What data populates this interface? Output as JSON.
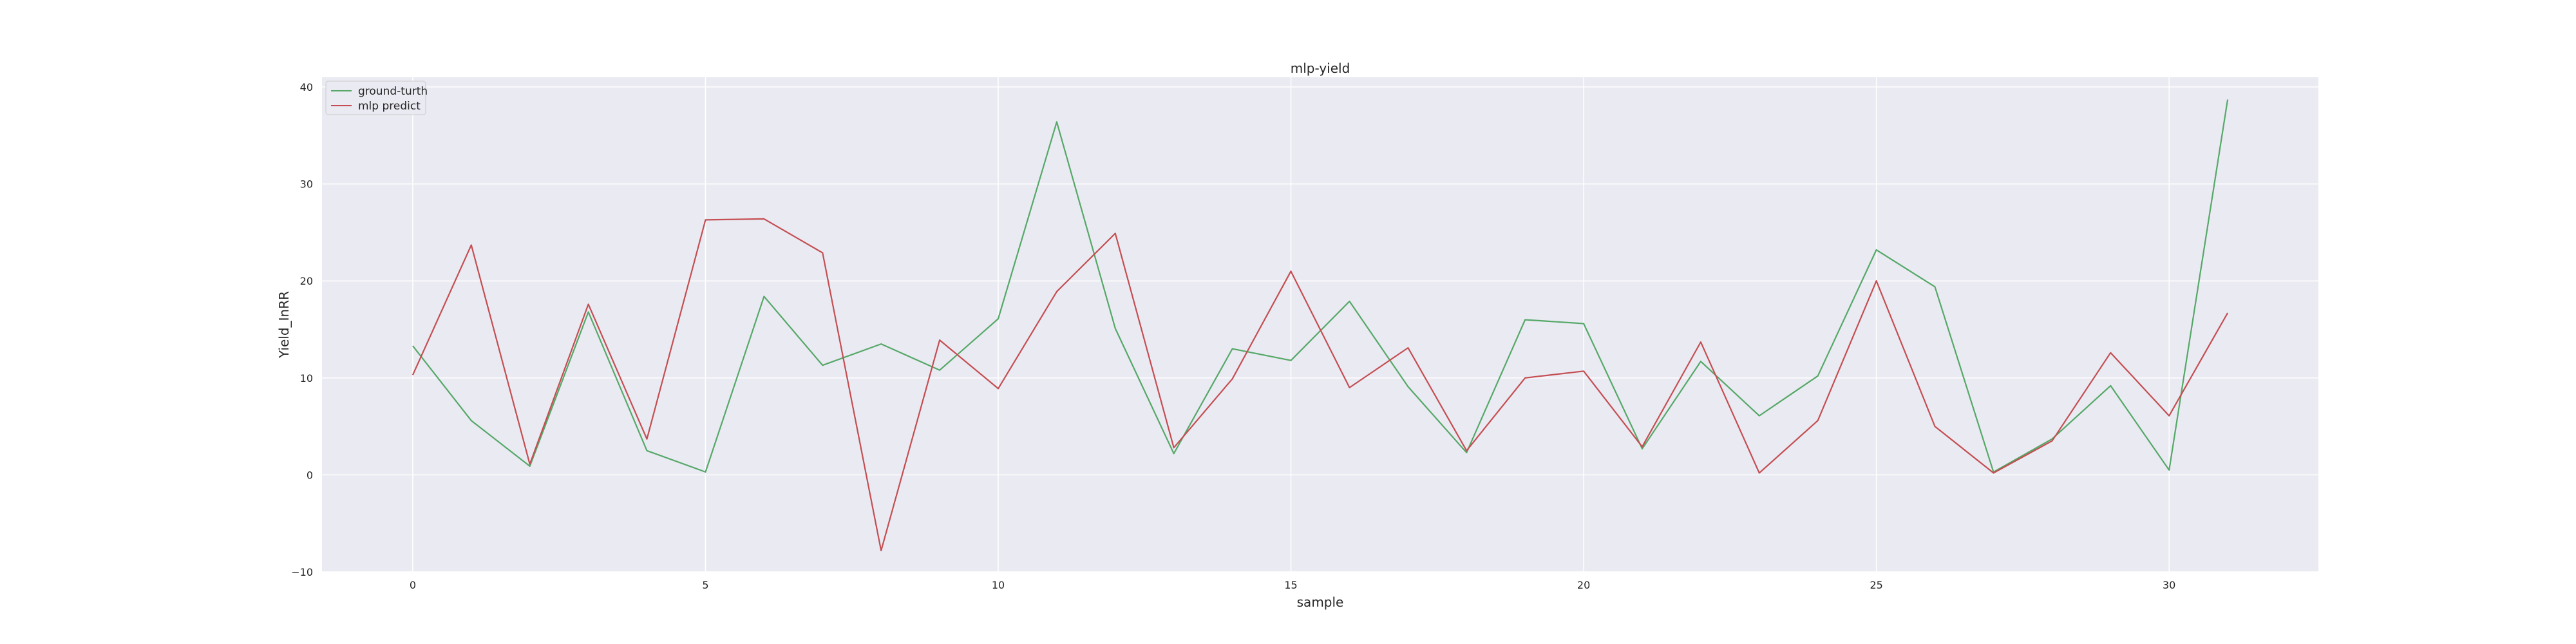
{
  "chart_data": {
    "type": "line",
    "title": "mlp-yield",
    "xlabel": "sample",
    "ylabel": "Yield_InRR",
    "xlim": [
      -1.55,
      32.55
    ],
    "ylim": [
      -10,
      41
    ],
    "xticks": [
      0,
      5,
      10,
      15,
      20,
      25,
      30
    ],
    "yticks": [
      -10,
      0,
      10,
      20,
      30,
      40
    ],
    "grid": true,
    "legend_position": "top-left",
    "background": "#eaeaf2",
    "x": [
      0,
      1,
      2,
      3,
      4,
      5,
      6,
      7,
      8,
      9,
      10,
      11,
      12,
      13,
      14,
      15,
      16,
      17,
      18,
      19,
      20,
      21,
      22,
      23,
      24,
      25,
      26,
      27,
      28,
      29,
      30,
      31
    ],
    "series": [
      {
        "name": "ground-turth",
        "color": "#55a868",
        "values": [
          13.3,
          5.6,
          0.9,
          16.8,
          2.5,
          0.3,
          18.4,
          11.3,
          13.5,
          10.8,
          16.1,
          36.4,
          15.1,
          2.2,
          13.0,
          11.8,
          17.9,
          9.1,
          2.3,
          16.0,
          15.6,
          2.7,
          11.7,
          6.1,
          10.2,
          23.2,
          19.4,
          0.3,
          3.7,
          9.2,
          0.5,
          38.7
        ]
      },
      {
        "name": "mlp predict",
        "color": "#c44e52",
        "values": [
          10.3,
          23.7,
          1.1,
          17.6,
          3.7,
          26.3,
          26.4,
          22.9,
          -7.8,
          13.9,
          8.9,
          18.9,
          24.9,
          2.8,
          9.9,
          21.0,
          9.0,
          13.1,
          2.5,
          10.0,
          10.7,
          2.9,
          13.7,
          0.2,
          5.6,
          20.0,
          5.0,
          0.2,
          3.5,
          12.6,
          6.1,
          16.7
        ]
      }
    ]
  }
}
